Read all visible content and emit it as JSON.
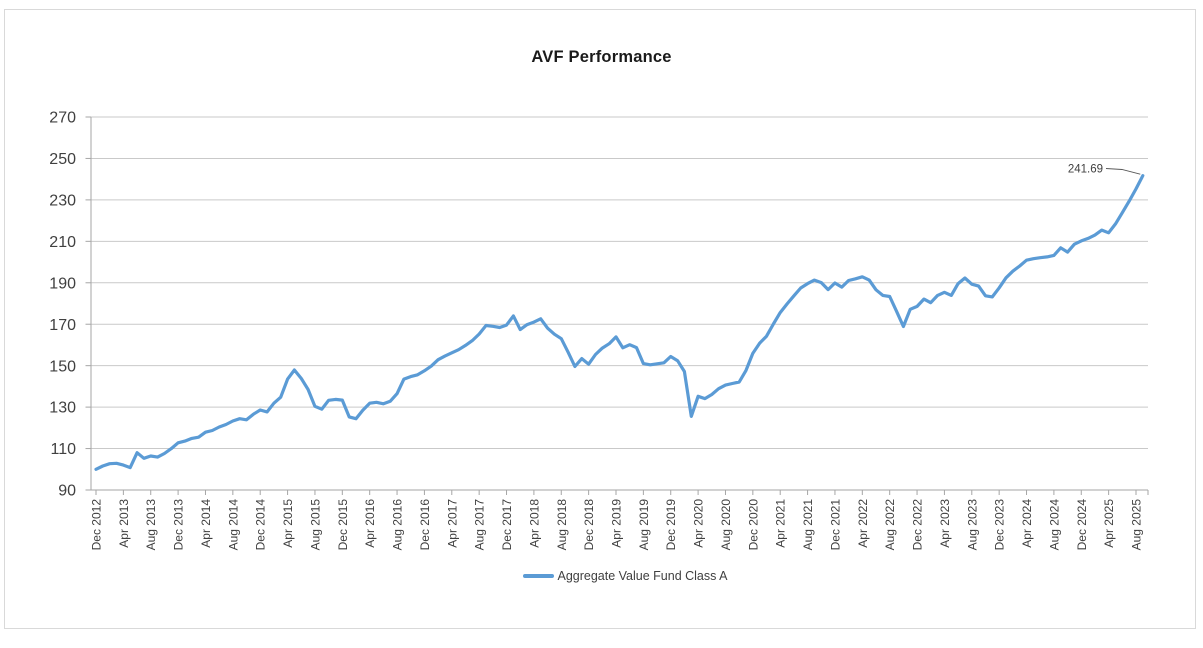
{
  "chart_data": {
    "type": "line",
    "title": "AVF Performance",
    "legend_position": "bottom",
    "grid": true,
    "ylim": [
      90,
      270
    ],
    "y_ticks": [
      270,
      250,
      230,
      210,
      190,
      170,
      150,
      130,
      110,
      90
    ],
    "x_tick_labels": [
      "Dec 2012",
      "Apr 2013",
      "Aug 2013",
      "Dec 2013",
      "Apr 2014",
      "Aug 2014",
      "Dec 2014",
      "Apr 2015",
      "Aug 2015",
      "Dec 2015",
      "Apr 2016",
      "Aug 2016",
      "Dec 2016",
      "Apr 2017",
      "Aug 2017",
      "Dec 2017",
      "Apr 2018",
      "Aug 2018",
      "Dec 2018",
      "Apr 2019",
      "Aug 2019",
      "Dec 2019",
      "Apr 2020",
      "Aug 2020",
      "Dec 2020",
      "Apr 2021",
      "Aug 2021",
      "Dec 2021",
      "Apr 2022",
      "Aug 2022",
      "Dec 2022",
      "Apr 2023",
      "Aug 2023",
      "Dec 2023",
      "Apr 2024",
      "Aug 2024",
      "Dec 2024",
      "Apr 2025",
      "Aug 2025"
    ],
    "frequency": "monthly",
    "series": [
      {
        "name": "Aggregate Value Fund Class A",
        "color": "#5B9BD5",
        "values": [
          100.0,
          101.6,
          102.7,
          102.9,
          102.0,
          100.8,
          108.0,
          105.3,
          106.4,
          105.9,
          107.6,
          110.0,
          112.8,
          113.6,
          114.9,
          115.5,
          117.9,
          118.7,
          120.4,
          121.6,
          123.3,
          124.4,
          123.9,
          126.6,
          128.6,
          127.7,
          131.9,
          134.8,
          143.5,
          147.9,
          143.8,
          138.5,
          130.4,
          129.0,
          133.3,
          133.7,
          133.4,
          125.3,
          124.4,
          128.5,
          131.9,
          132.3,
          131.6,
          132.8,
          136.5,
          143.5,
          144.7,
          145.6,
          147.5,
          149.8,
          152.9,
          154.6,
          156.2,
          157.7,
          159.8,
          162.1,
          165.3,
          169.4,
          169.0,
          168.4,
          169.6,
          174.0,
          167.4,
          169.8,
          171.0,
          172.6,
          168.1,
          165.2,
          163.0,
          156.5,
          149.6,
          153.4,
          150.7,
          155.4,
          158.5,
          160.6,
          163.9,
          158.6,
          160.1,
          158.7,
          151.0,
          150.4,
          150.9,
          151.4,
          154.4,
          152.4,
          147.2,
          125.5,
          135.2,
          134.1,
          136.1,
          138.9,
          140.6,
          141.4,
          142.1,
          147.7,
          155.9,
          160.9,
          164.2,
          170.1,
          175.6,
          179.8,
          183.7,
          187.5,
          189.6,
          191.3,
          190.1,
          186.7,
          189.9,
          187.9,
          191.1,
          191.9,
          192.9,
          191.3,
          186.6,
          183.9,
          183.4,
          176.3,
          168.9,
          177.2,
          178.6,
          182.1,
          180.4,
          183.9,
          185.4,
          183.9,
          189.6,
          192.3,
          189.3,
          188.4,
          183.7,
          183.2,
          187.6,
          192.4,
          195.6,
          198.1,
          200.9,
          201.6,
          202.1,
          202.5,
          203.2,
          206.9,
          204.8,
          208.6,
          210.2,
          211.4,
          213.0,
          215.4,
          214.1,
          218.4,
          223.8,
          229.4,
          235.3,
          241.69
        ]
      }
    ],
    "annotation": {
      "text": "241.69",
      "value": 241.69,
      "position": "last-point"
    },
    "axis_color": "#a6a6a6",
    "gridline_color": "#c9c9c9",
    "label_color": "#404040"
  }
}
